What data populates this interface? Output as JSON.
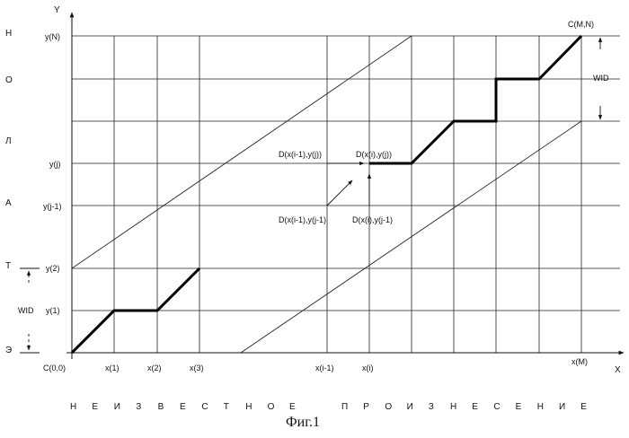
{
  "axes": {
    "x_label": "X",
    "y_label": "Y"
  },
  "y_ticks": [
    "y(N)",
    "y(j)",
    "y(j-1)",
    "y(2)",
    "y(1)"
  ],
  "x_ticks": [
    "C(0,0)",
    "x(1)",
    "x(2)",
    "x(3)",
    "x(i-1)",
    "x(i)",
    "x(M)"
  ],
  "corner_label": "C(M,N)",
  "wid_label": "WID",
  "node_labels": [
    "D(x(i-1),y(j))",
    "D(x(i),y(j))",
    "D(x(i-1),y(j-1)",
    "D(x(i),y(j-1)"
  ],
  "side_letters": [
    "Н",
    "О",
    "Л",
    "А",
    "Т",
    "Э"
  ],
  "bottom_left_letters": [
    "Н",
    "Е",
    "И",
    "З",
    "В",
    "Е",
    "С",
    "Т",
    "Н",
    "О",
    "Е"
  ],
  "bottom_right_letters": [
    "П",
    "Р",
    "О",
    "И",
    "З",
    "Н",
    "Е",
    "С",
    "Е",
    "Н",
    "И",
    "Е"
  ],
  "caption": "Фиг.1"
}
